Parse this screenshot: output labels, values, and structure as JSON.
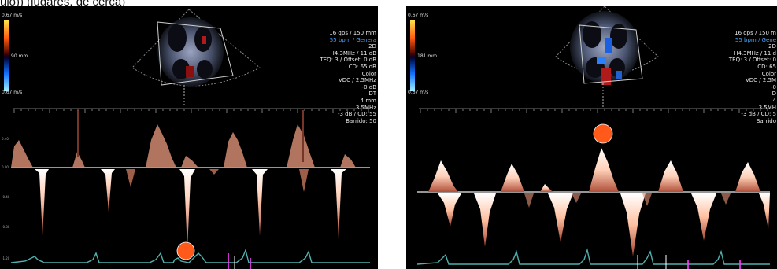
{
  "caption": "ulo)) (lugares, de cerca)",
  "left_panel": {
    "color_scale_top": "0.67 m/s",
    "color_scale_bottom": "0.67 m/s",
    "baseline_label": "90 mm",
    "info_lines": [
      "16 qps / 150 mm",
      "55 bpm / Genera",
      "2D",
      "H4.3MHz / 11 dB",
      "TEQ: 3 / Offset: 0 dB",
      "CD: 65 dB",
      "Color",
      "VDC / 2.5MHz",
      "-0 dB",
      "DT",
      "4 mm",
      "3.5MHz",
      "-3 dB / CD: 55",
      "Barrido: 50"
    ],
    "marker_color": "#ff5a1a"
  },
  "right_panel": {
    "color_scale_top": "0.67 m/s",
    "color_scale_bottom": "0.67 m/s",
    "baseline_label": "181 mm",
    "info_lines": [
      "16 qps / 150 m",
      "55 bpm / Gene",
      "2D",
      "H4.3MHz / 11 d",
      "TEQ: 3 / Offset: 0",
      "CD: 65",
      "Color",
      "VDC / 2.5M",
      "-0",
      "D",
      "4",
      "3.5MH",
      "-3 dB / CD: 5",
      "Barrido"
    ],
    "marker_color": "#ff5a1a"
  }
}
